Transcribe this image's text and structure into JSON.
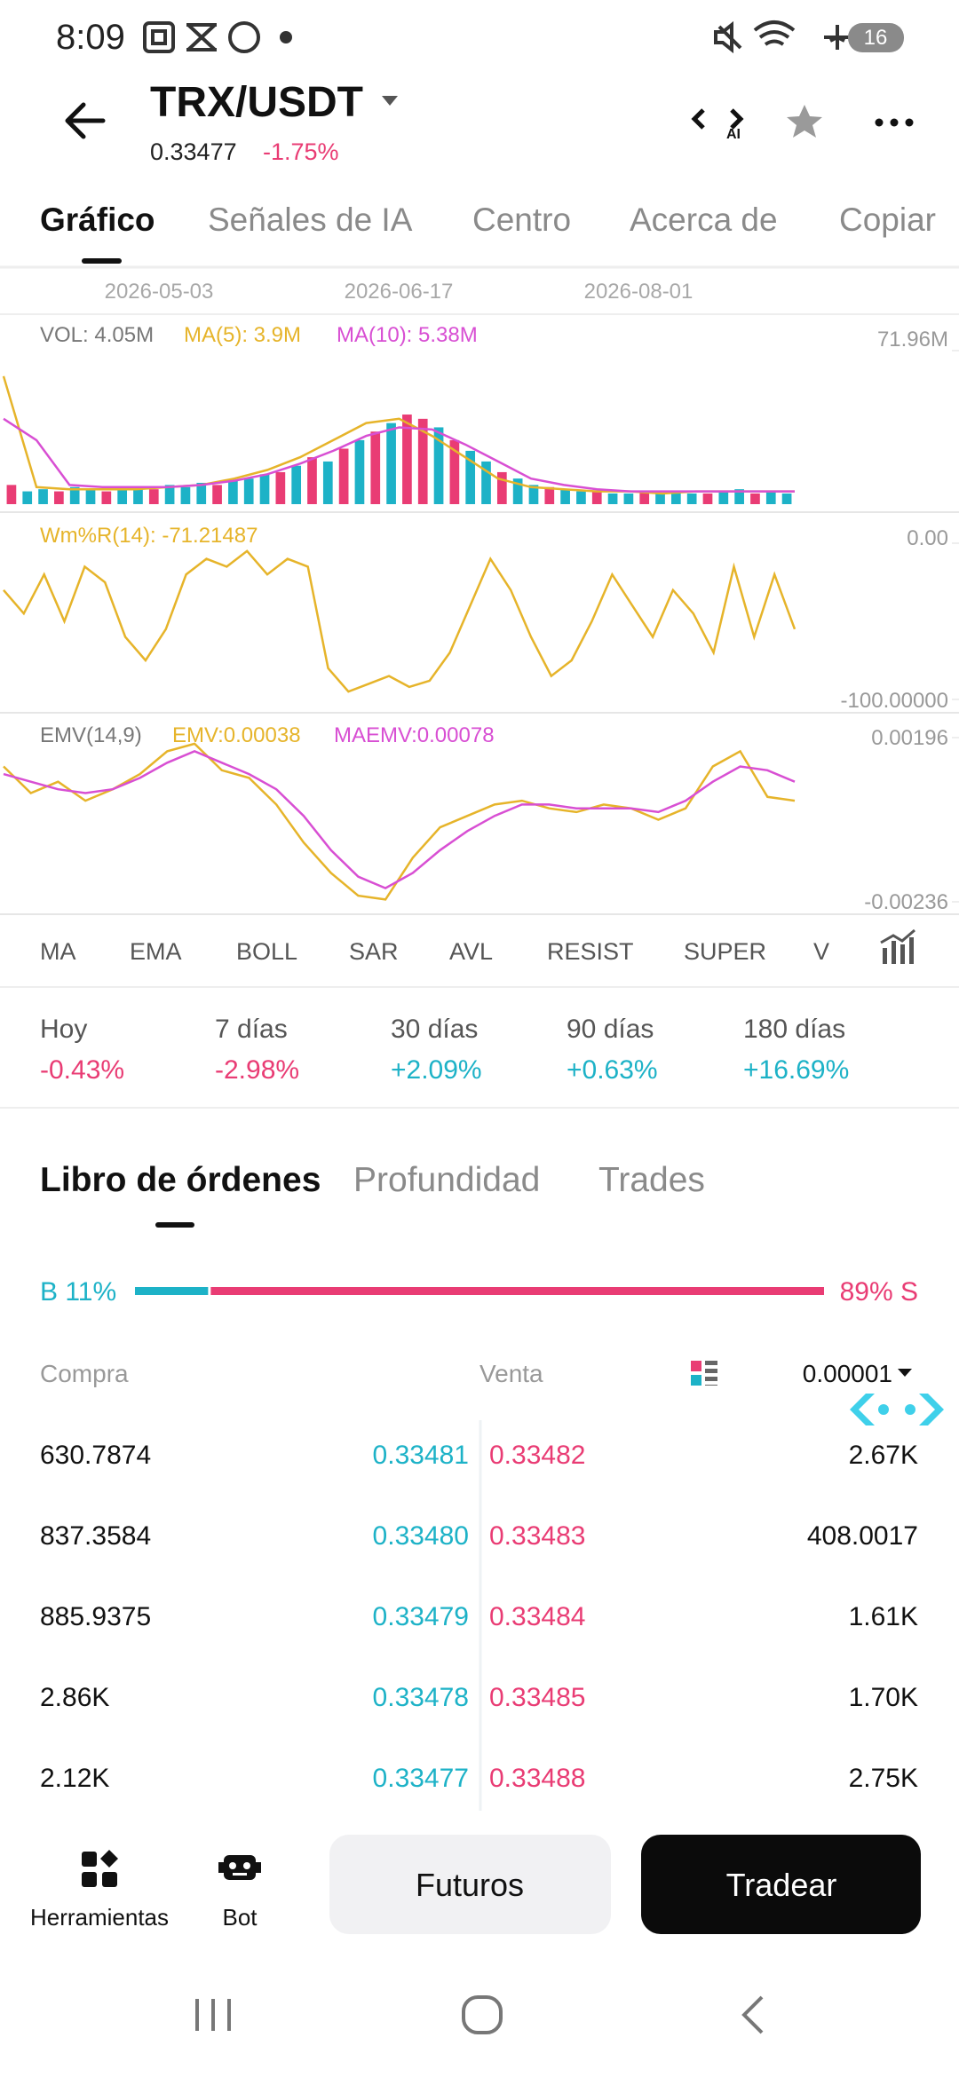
{
  "status_bar": {
    "time": "8:09",
    "battery": "16"
  },
  "header": {
    "pair": "TRX/USDT",
    "price": "0.33477",
    "change": "-1.75%"
  },
  "tabs": [
    "Gráfico",
    "Señales de IA",
    "Centro",
    "Acerca de",
    "Copiar"
  ],
  "chart": {
    "colors": {
      "up": "#1db2c7",
      "down": "#e93c74",
      "ma5": "#e6b42a",
      "ma10": "#d84fd3"
    },
    "dates": [
      "2026-05-03",
      "2026-06-17",
      "2026-08-01"
    ],
    "volume": {
      "label": "VOL: 4.05M",
      "ma5_label": "MA(5): 3.9M",
      "ma10_label": "MA(10): 5.38M",
      "ylim": [
        0,
        71.96
      ],
      "yticks": [
        {
          "value": 71.96,
          "label": "71.96M"
        }
      ],
      "up": [
        null,
        6,
        7,
        null,
        8,
        7,
        null,
        7,
        8,
        null,
        9,
        8,
        10,
        null,
        11,
        12,
        14,
        null,
        18,
        null,
        20,
        null,
        30,
        null,
        38,
        null,
        null,
        36,
        null,
        25,
        20,
        null,
        12,
        9,
        null,
        7,
        6,
        null,
        5,
        5,
        null,
        5,
        6,
        5,
        null,
        6,
        7,
        null,
        6,
        5
      ],
      "down": [
        9,
        null,
        null,
        6,
        null,
        null,
        6,
        null,
        null,
        7,
        null,
        null,
        null,
        9,
        null,
        null,
        null,
        15,
        null,
        22,
        null,
        26,
        null,
        34,
        null,
        42,
        40,
        null,
        30,
        null,
        null,
        15,
        null,
        null,
        8,
        null,
        null,
        6,
        null,
        null,
        6,
        null,
        null,
        null,
        5,
        null,
        null,
        5,
        null,
        null
      ],
      "ma5": [
        60,
        8,
        7,
        7,
        7,
        8,
        9,
        12,
        16,
        22,
        30,
        38,
        40,
        32,
        22,
        12,
        8,
        7,
        6,
        6,
        5,
        6,
        6,
        6,
        6
      ],
      "ma10": [
        40,
        30,
        9,
        8,
        8,
        8,
        9,
        11,
        14,
        19,
        25,
        32,
        36,
        35,
        28,
        20,
        12,
        9,
        7,
        6,
        6,
        6,
        6,
        6,
        6
      ]
    },
    "wr": {
      "label": "Wm%R(14): -71.21487",
      "ylim": [
        -100,
        0
      ],
      "yticks": [
        {
          "value": 0,
          "label": "0.00"
        },
        {
          "value": -100,
          "label": "-100.00000"
        }
      ],
      "values": [
        -30,
        -45,
        -20,
        -50,
        -15,
        -25,
        -60,
        -75,
        -55,
        -20,
        -10,
        -15,
        -5,
        -20,
        -10,
        -15,
        -80,
        -95,
        -90,
        -85,
        -92,
        -88,
        -70,
        -40,
        -10,
        -30,
        -60,
        -85,
        -75,
        -50,
        -20,
        -40,
        -60,
        -30,
        -45,
        -70,
        -15,
        -60,
        -20,
        -55
      ]
    },
    "emv": {
      "title": "EMV(14,9)",
      "emv_label": "EMV:0.00038",
      "maemv_label": "MAEMV:0.00078",
      "ylim": [
        -0.00236,
        0.00196
      ],
      "yticks": [
        0.00196,
        -0.00236
      ],
      "emv": [
        0.0012,
        0.0005,
        0.0008,
        0.0003,
        0.0006,
        0.001,
        0.0016,
        0.0018,
        0.0011,
        0.0009,
        0.0002,
        -0.0008,
        -0.0016,
        -0.0022,
        -0.0023,
        -0.0012,
        -0.0004,
        -0.0001,
        0.0002,
        0.0003,
        0.0001,
        0,
        0.0002,
        0.0001,
        -0.0002,
        0.0001,
        0.0012,
        0.0016,
        0.0004,
        0.0003
      ],
      "maemv": [
        0.001,
        0.0008,
        0.0006,
        0.0005,
        0.0006,
        0.0009,
        0.0013,
        0.0016,
        0.0013,
        0.001,
        0.0006,
        -0.0001,
        -0.001,
        -0.0017,
        -0.002,
        -0.0016,
        -0.001,
        -0.0005,
        -0.0001,
        0.0002,
        0.0002,
        0.0001,
        0.0001,
        0.0001,
        0,
        0.0003,
        0.0008,
        0.0012,
        0.0011,
        0.0008
      ]
    }
  },
  "indicators": [
    "MA",
    "EMA",
    "BOLL",
    "SAR",
    "AVL",
    "RESIST",
    "SUPER",
    "V"
  ],
  "performance": [
    {
      "period": "Hoy",
      "change": "-0.43%"
    },
    {
      "period": "7 días",
      "change": "-2.98%"
    },
    {
      "period": "30 días",
      "change": "+2.09%"
    },
    {
      "period": "90 días",
      "change": "+0.63%"
    },
    {
      "period": "180 días",
      "change": "+16.69%"
    }
  ],
  "order_book": {
    "tabs": [
      "Libro de órdenes",
      "Profundidad",
      "Trades"
    ],
    "buy": {
      "value": 11,
      "label": "B 11%"
    },
    "sell": {
      "value": 89,
      "label": "89% S"
    },
    "header": {
      "buy": "Compra",
      "sell": "Venta",
      "precision": "0.00001"
    },
    "rows": [
      [
        "630.7874",
        "0.33481",
        "0.33482",
        "2.67K"
      ],
      [
        "837.3584",
        "0.33480",
        "0.33483",
        "408.0017"
      ],
      [
        "885.9375",
        "0.33479",
        "0.33484",
        "1.61K"
      ],
      [
        "2.86K",
        "0.33478",
        "0.33485",
        "1.70K"
      ],
      [
        "2.12K",
        "0.33477",
        "0.33488",
        "2.75K"
      ]
    ]
  },
  "bottom": {
    "tools": "Herramientas",
    "bot": "Bot",
    "futures": "Futuros",
    "trade": "Tradear"
  }
}
